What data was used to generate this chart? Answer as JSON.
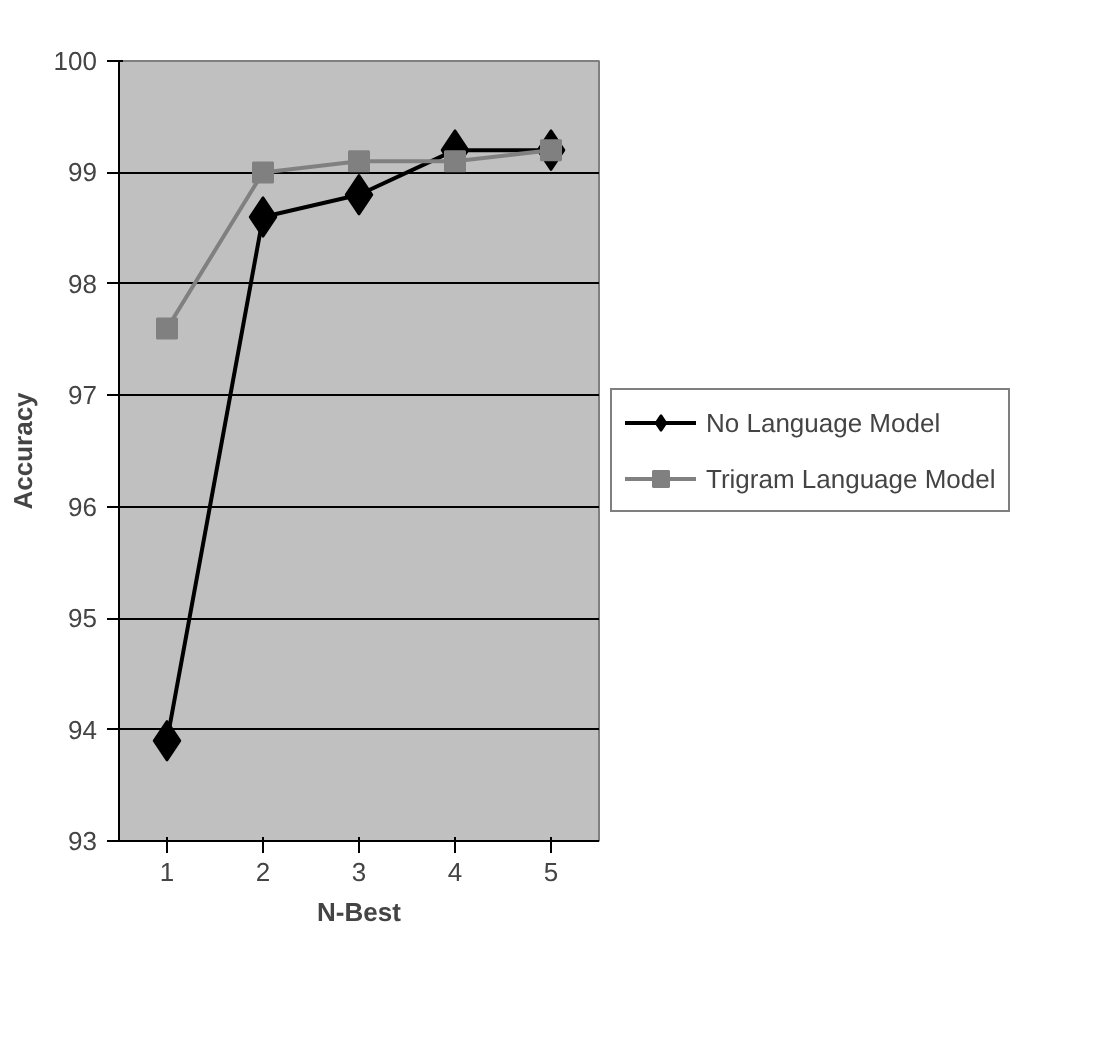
{
  "chart_data": {
    "type": "line",
    "xlabel": "N-Best",
    "ylabel": "Accuracy",
    "categories": [
      "1",
      "2",
      "3",
      "4",
      "5"
    ],
    "series": [
      {
        "name": "No Language Model",
        "color": "#000000",
        "marker": "diamond",
        "values": [
          93.9,
          98.6,
          98.8,
          99.2,
          99.2
        ]
      },
      {
        "name": "Trigram Language Model",
        "color": "#808080",
        "marker": "square",
        "values": [
          97.6,
          99.0,
          99.1,
          99.1,
          99.2
        ]
      }
    ],
    "ylim": [
      93,
      100
    ],
    "yticks": [
      93,
      94,
      95,
      96,
      97,
      98,
      99,
      100
    ],
    "grid": "y",
    "legend": "right",
    "line_style": "solid"
  }
}
